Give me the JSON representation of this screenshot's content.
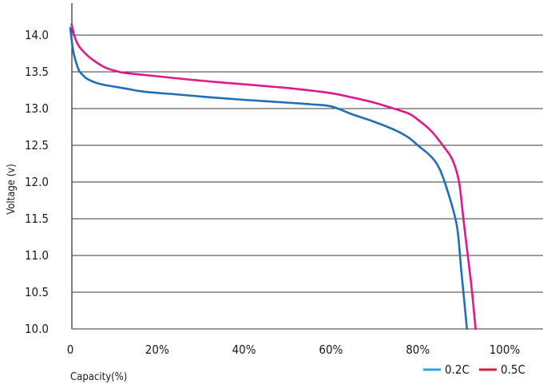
{
  "chart_data": {
    "type": "line",
    "title": "",
    "xlabel": "Capacity(%)",
    "ylabel": "Voltage (v)",
    "xlim": [
      0,
      105
    ],
    "ylim": [
      10.0,
      14.5
    ],
    "x_ticks": [
      {
        "value": 0,
        "label": "0"
      },
      {
        "value": 20,
        "label": "20%"
      },
      {
        "value": 40,
        "label": "40%"
      },
      {
        "value": 60,
        "label": "60%"
      },
      {
        "value": 80,
        "label": "80%"
      },
      {
        "value": 100,
        "label": "100%"
      }
    ],
    "y_ticks": [
      {
        "value": 10.0,
        "label": "10.0"
      },
      {
        "value": 10.5,
        "label": "10.5"
      },
      {
        "value": 11.0,
        "label": "11.0"
      },
      {
        "value": 11.5,
        "label": "11.5"
      },
      {
        "value": 12.0,
        "label": "12.0"
      },
      {
        "value": 12.5,
        "label": "12.5"
      },
      {
        "value": 13.0,
        "label": "13.0"
      },
      {
        "value": 13.5,
        "label": "13.5"
      },
      {
        "value": 14.0,
        "label": "14.0"
      }
    ],
    "grid": "horizontal",
    "legend": "bottom-right",
    "series": [
      {
        "name": "0.2C",
        "color": "#1f6fb8",
        "legend_color": "#29a8e0",
        "points": [
          [
            0,
            14.1
          ],
          [
            0.5,
            13.85
          ],
          [
            1,
            13.7
          ],
          [
            2,
            13.52
          ],
          [
            3,
            13.45
          ],
          [
            4,
            13.4
          ],
          [
            6,
            13.35
          ],
          [
            8,
            13.32
          ],
          [
            10,
            13.3
          ],
          [
            13,
            13.27
          ],
          [
            17,
            13.23
          ],
          [
            25,
            13.19
          ],
          [
            35,
            13.14
          ],
          [
            45,
            13.1
          ],
          [
            55,
            13.06
          ],
          [
            60,
            13.03
          ],
          [
            65,
            12.92
          ],
          [
            70,
            12.82
          ],
          [
            75,
            12.7
          ],
          [
            78,
            12.6
          ],
          [
            80,
            12.5
          ],
          [
            83,
            12.35
          ],
          [
            85,
            12.18
          ],
          [
            87,
            11.85
          ],
          [
            89,
            11.4
          ],
          [
            90,
            10.8
          ],
          [
            91,
            10.2
          ],
          [
            91.3,
            10.0
          ]
        ]
      },
      {
        "name": "0.5C",
        "color": "#e0198a",
        "legend_color": "#d11f3f",
        "points": [
          [
            0.3,
            14.15
          ],
          [
            1,
            13.98
          ],
          [
            2,
            13.85
          ],
          [
            4,
            13.72
          ],
          [
            6,
            13.63
          ],
          [
            8,
            13.56
          ],
          [
            10,
            13.52
          ],
          [
            12,
            13.49
          ],
          [
            15,
            13.47
          ],
          [
            20,
            13.44
          ],
          [
            30,
            13.38
          ],
          [
            40,
            13.33
          ],
          [
            50,
            13.28
          ],
          [
            60,
            13.21
          ],
          [
            65,
            13.15
          ],
          [
            70,
            13.08
          ],
          [
            75,
            12.99
          ],
          [
            78,
            12.93
          ],
          [
            80,
            12.85
          ],
          [
            83,
            12.7
          ],
          [
            86,
            12.48
          ],
          [
            88,
            12.3
          ],
          [
            89.5,
            12.0
          ],
          [
            90.5,
            11.5
          ],
          [
            91.5,
            11.0
          ],
          [
            92.5,
            10.5
          ],
          [
            93.3,
            10.0
          ]
        ]
      }
    ]
  }
}
